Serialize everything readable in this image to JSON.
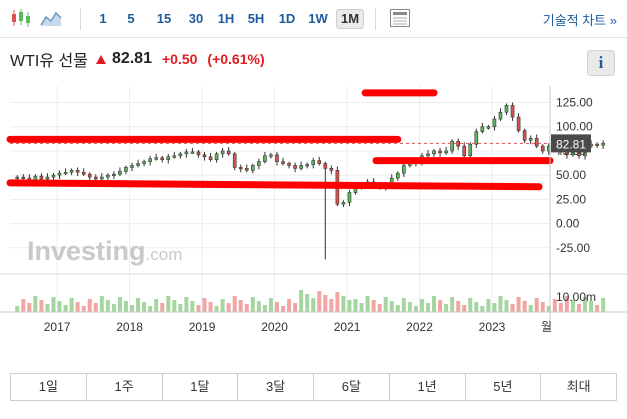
{
  "toolbar": {
    "icons": [
      "candlestick-icon",
      "area-chart-icon",
      "table-view-icon"
    ],
    "intervals": [
      "1",
      "5",
      "15",
      "30",
      "1H",
      "5H",
      "1D",
      "1W",
      "1M"
    ],
    "active_interval": "1M",
    "technical_chart_label": "기술적 차트 »"
  },
  "quote": {
    "name": "WTI유 선물",
    "price": "82.81",
    "change": "+0.50",
    "change_pct": "(+0.61%)",
    "info_label": "i"
  },
  "chart": {
    "watermark_bold": "Investing",
    "watermark_suffix": ".com",
    "current_price_label": "82.81",
    "volume_label": "10.00m",
    "cut_label": "월",
    "colors": {
      "up": "#5cb85c",
      "down": "#d9534f",
      "marker": "#ff0000",
      "candle": "#333333"
    }
  },
  "chart_data": {
    "type": "candlestick",
    "y_ticks": [
      "125.00",
      "100.00",
      "75.00",
      "50.00",
      "25.00",
      "0.00",
      "-25.00"
    ],
    "ylim": [
      -50,
      140
    ],
    "x_ticks": [
      "2017",
      "2018",
      "2019",
      "2020",
      "2021",
      "2022",
      "2023"
    ],
    "x_tick_values": [
      2017,
      2018,
      2019,
      2020,
      2021,
      2022,
      2023
    ],
    "xlim": [
      2016.35,
      2023.8
    ],
    "current_price": 82.81,
    "monthly_close": [
      48,
      47,
      45,
      49,
      46,
      48,
      50,
      52,
      53,
      55,
      53,
      51,
      48,
      46,
      48,
      50,
      51,
      54,
      58,
      60,
      62,
      64,
      67,
      68,
      66,
      69,
      70,
      72,
      74,
      74,
      71,
      69,
      66,
      72,
      75,
      72,
      58,
      57,
      55,
      60,
      64,
      70,
      71,
      64,
      62,
      60,
      57,
      60,
      61,
      65,
      62,
      57,
      55,
      20,
      22,
      32,
      38,
      40,
      43,
      41,
      38,
      40,
      47,
      52,
      60,
      62,
      64,
      70,
      72,
      75,
      73,
      75,
      85,
      80,
      70,
      82,
      95,
      100,
      100,
      108,
      115,
      122,
      110,
      96,
      86,
      88,
      80,
      75,
      80,
      76,
      74,
      71,
      73,
      70,
      80,
      82,
      81,
      83
    ],
    "markers": [
      {
        "from": [
          2021.25,
          135
        ],
        "to": [
          2022.2,
          135
        ]
      },
      {
        "from": [
          2016.35,
          87
        ],
        "to": [
          2021.7,
          87
        ]
      },
      {
        "from": [
          2016.35,
          42
        ],
        "to": [
          2023.65,
          38
        ]
      },
      {
        "from": [
          2021.4,
          65
        ],
        "to": [
          2023.8,
          65
        ]
      }
    ]
  }
}
